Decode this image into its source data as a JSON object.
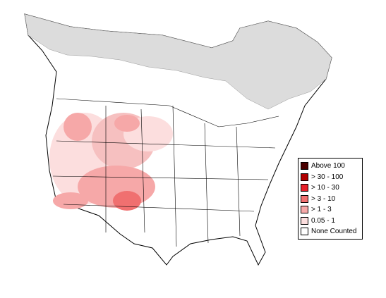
{
  "legend": {
    "items": [
      {
        "label": "Above 100",
        "color": "#4a0000"
      },
      {
        "label": "> 30 - 100",
        "color": "#b00000"
      },
      {
        "label": "> 10 - 30",
        "color": "#e8202a"
      },
      {
        "label": "> 3 - 10",
        "color": "#f07070"
      },
      {
        "label": "> 1 - 3",
        "color": "#f6a8a8"
      },
      {
        "label": "0.05 - 1",
        "color": "#fcdede"
      },
      {
        "label": "None Counted",
        "color": "#ffffff"
      }
    ]
  }
}
